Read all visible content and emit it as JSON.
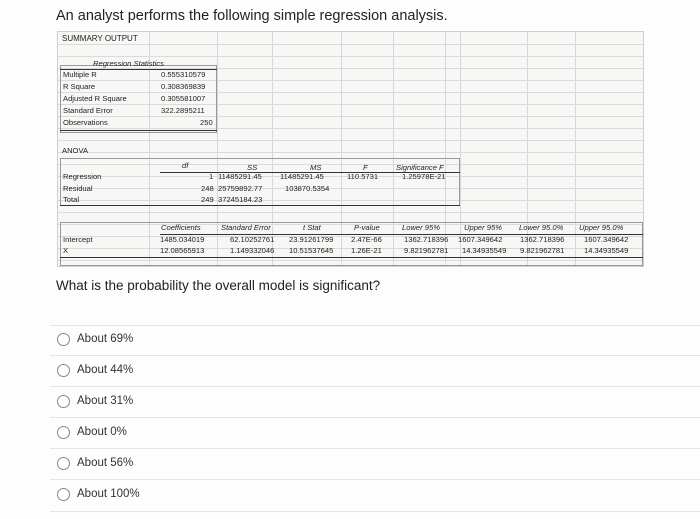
{
  "question": {
    "intro": "An analyst performs the following simple regression analysis.",
    "prompt": "What is the probability the overall model is significant?"
  },
  "summary_output": {
    "title": "SUMMARY OUTPUT",
    "regression_statistics": {
      "header": "Regression Statistics",
      "rows": [
        {
          "label": "Multiple R",
          "value": "0.555310579"
        },
        {
          "label": "R Square",
          "value": "0.308369839"
        },
        {
          "label": "Adjusted R Square",
          "value": "0.305581007"
        },
        {
          "label": "Standard Error",
          "value": "322.2895211"
        },
        {
          "label": "Observations",
          "value": "250"
        }
      ]
    },
    "anova": {
      "title": "ANOVA",
      "headers": {
        "df": "df",
        "ss": "SS",
        "ms": "MS",
        "f": "F",
        "sig": "Significance F"
      },
      "rows": [
        {
          "label": "Regression",
          "df": "1",
          "ss": "11485291.45",
          "ms": "11485291.45",
          "f": "110.5731",
          "sig": "1.25978E-21"
        },
        {
          "label": "Residual",
          "df": "248",
          "ss": "25759892.77",
          "ms": "103870.5354",
          "f": "",
          "sig": ""
        },
        {
          "label": "Total",
          "df": "249",
          "ss": "37245184.23",
          "ms": "",
          "f": "",
          "sig": ""
        }
      ]
    },
    "coefficients": {
      "headers": {
        "coef": "Coefficients",
        "se": "Standard Error",
        "t": "t Stat",
        "p": "P-value",
        "lo95": "Lower 95%",
        "up95": "Upper 95%",
        "lo950": "Lower 95.0%",
        "up950": "Upper 95.0%"
      },
      "rows": [
        {
          "label": "Intercept",
          "coef": "1485.034019",
          "se": "62.10252761",
          "t": "23.91261799",
          "p": "2.47E-66",
          "lo95": "1362.718396",
          "up95": "1607.349642",
          "lo950": "1362.718396",
          "up950": "1607.349642"
        },
        {
          "label": "X",
          "coef": "12.08565913",
          "se": "1.149332046",
          "t": "10.51537645",
          "p": "1.26E-21",
          "lo95": "9.821962781",
          "up95": "14.34935549",
          "lo950": "9.821962781",
          "up950": "14.34935549"
        }
      ]
    }
  },
  "options": [
    {
      "label": "About 69%"
    },
    {
      "label": "About 44%"
    },
    {
      "label": "About 31%"
    },
    {
      "label": "About 0%"
    },
    {
      "label": "About 56%"
    },
    {
      "label": "About 100%"
    }
  ]
}
